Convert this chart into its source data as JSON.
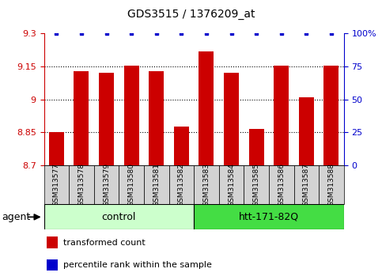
{
  "title": "GDS3515 / 1376209_at",
  "samples": [
    "GSM313577",
    "GSM313578",
    "GSM313579",
    "GSM313580",
    "GSM313581",
    "GSM313582",
    "GSM313583",
    "GSM313584",
    "GSM313585",
    "GSM313586",
    "GSM313587",
    "GSM313588"
  ],
  "bar_values": [
    8.85,
    9.13,
    9.12,
    9.155,
    9.13,
    8.875,
    9.22,
    9.12,
    8.865,
    9.155,
    9.01,
    9.155
  ],
  "percentile_values": [
    100,
    100,
    100,
    100,
    100,
    100,
    100,
    100,
    100,
    100,
    100,
    100
  ],
  "bar_color": "#cc0000",
  "percentile_color": "#0000cc",
  "ymin": 8.7,
  "ymax": 9.3,
  "yticks": [
    8.7,
    8.85,
    9.0,
    9.15,
    9.3
  ],
  "ytick_labels": [
    "8.7",
    "8.85",
    "9",
    "9.15",
    "9.3"
  ],
  "right_yticks": [
    0,
    25,
    50,
    75,
    100
  ],
  "right_ytick_labels": [
    "0",
    "25",
    "50",
    "75",
    "100%"
  ],
  "dotted_lines": [
    8.85,
    9.0,
    9.15
  ],
  "ctrl_color": "#ccffcc",
  "htt_color": "#44dd44",
  "ctrl_label": "control",
  "htt_label": "htt-171-82Q",
  "ctrl_samples": 6,
  "htt_samples": 6,
  "agent_label": "agent",
  "legend_bar_label": "transformed count",
  "legend_dot_label": "percentile rank within the sample",
  "left_tick_color": "#cc0000",
  "right_tick_color": "#0000cc",
  "label_bg_color": "#d3d3d3"
}
